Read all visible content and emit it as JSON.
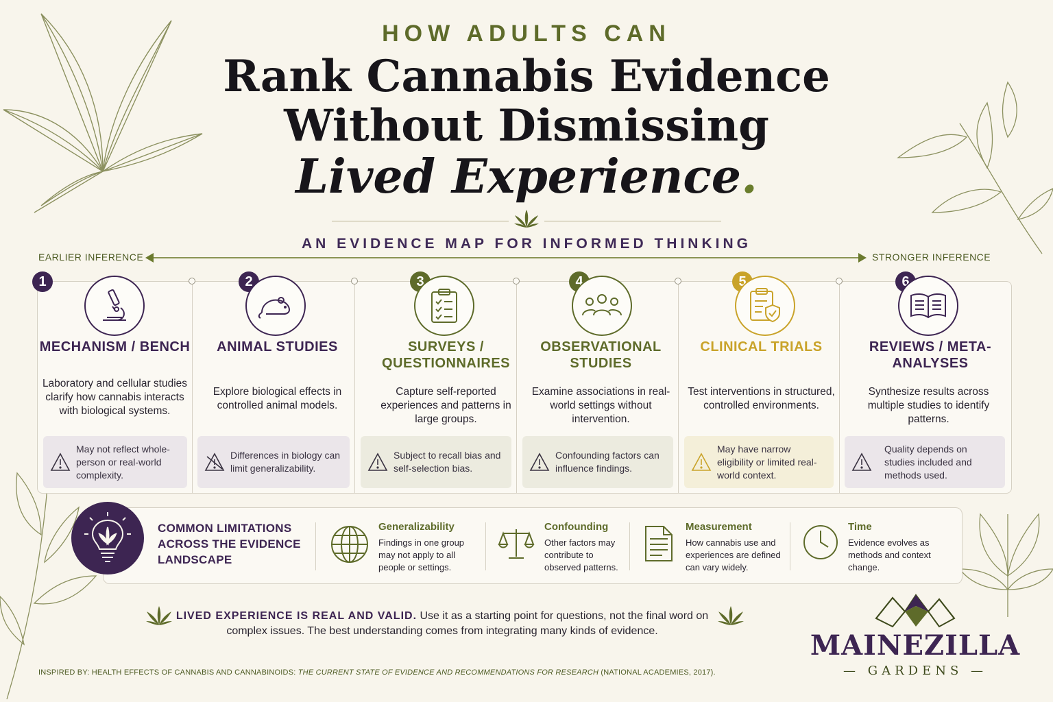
{
  "header": {
    "kicker": "HOW ADULTS CAN",
    "title_line1": "Rank Cannabis Evidence",
    "title_line2": "Without Dismissing",
    "title_line3": "Lived Experience",
    "title_period": ".",
    "subtitle": "AN EVIDENCE MAP FOR INFORMED THINKING"
  },
  "axis": {
    "left_label": "EARLIER INFERENCE",
    "right_label": "STRONGER INFERENCE"
  },
  "steps": [
    {
      "number": "1",
      "title": "MECHANISM / BENCH",
      "description": "Laboratory and cellular studies clarify how cannabis interacts with biological systems.",
      "limitation": "May not reflect whole-person or real-world complexity.",
      "icon": "microscope-icon",
      "color": "#3d2552",
      "note_bg": "#ebe6ea"
    },
    {
      "number": "2",
      "title": "ANIMAL STUDIES",
      "description": "Explore biological effects in controlled animal models.",
      "limitation": "Differences in biology can limit generalizability.",
      "icon": "mouse-icon",
      "color": "#3d2552",
      "note_bg": "#ebe6ea"
    },
    {
      "number": "3",
      "title": "SURVEYS / QUESTIONNAIRES",
      "description": "Capture self-reported experiences and patterns in large groups.",
      "limitation": "Subject to recall bias and self-selection bias.",
      "icon": "clipboard-icon",
      "color": "#5e6b2a",
      "note_bg": "#ecebdf"
    },
    {
      "number": "4",
      "title": "OBSERVATIONAL STUDIES",
      "description": "Examine associations in real-world settings without intervention.",
      "limitation": "Confounding factors can influence findings.",
      "icon": "people-icon",
      "color": "#5e6b2a",
      "note_bg": "#ecebdf"
    },
    {
      "number": "5",
      "title": "CLINICAL TRIALS",
      "description": "Test interventions in structured, controlled environments.",
      "limitation": "May have narrow eligibility or limited real-world context.",
      "icon": "shield-clipboard-icon",
      "color": "#c9a32a",
      "note_bg": "#f4efd9"
    },
    {
      "number": "6",
      "title": "REVIEWS / META-ANALYSES",
      "description": "Synthesize results across multiple studies to identify patterns.",
      "limitation": "Quality depends on studies included and methods used.",
      "icon": "book-icon",
      "color": "#3d2552",
      "note_bg": "#ebe6ea"
    }
  ],
  "limitations": {
    "title": "COMMON LIMITATIONS ACROSS THE EVIDENCE LANDSCAPE",
    "items": [
      {
        "name": "Generalizability",
        "description": "Findings in one group may not apply to all people or settings.",
        "icon": "globe-icon"
      },
      {
        "name": "Confounding",
        "description": "Other factors may contribute to observed patterns.",
        "icon": "scales-icon"
      },
      {
        "name": "Measurement",
        "description": "How cannabis use and experiences are defined can vary widely.",
        "icon": "document-icon"
      },
      {
        "name": "Time",
        "description": "Evidence evolves as methods and context change.",
        "icon": "clock-icon"
      }
    ]
  },
  "closing": {
    "emphasis": "LIVED EXPERIENCE IS REAL AND VALID.",
    "text": " Use it as a starting point for questions, not the final word on complex issues. The best understanding comes from integrating many kinds of evidence."
  },
  "footer": {
    "prefix": "INSPIRED BY: HEALTH EFFECTS OF CANNABIS AND CANNABINOIDS: ",
    "italic": "THE CURRENT STATE OF EVIDENCE AND RECOMMENDATIONS FOR RESEARCH",
    "suffix": " (NATIONAL ACADEMIES, 2017)."
  },
  "brand": {
    "name": "MAINEZILLA",
    "sub": "GARDENS"
  },
  "colors": {
    "purple": "#3d2552",
    "olive": "#5e6b2a",
    "gold": "#c9a32a",
    "background": "#f8f5ec"
  }
}
